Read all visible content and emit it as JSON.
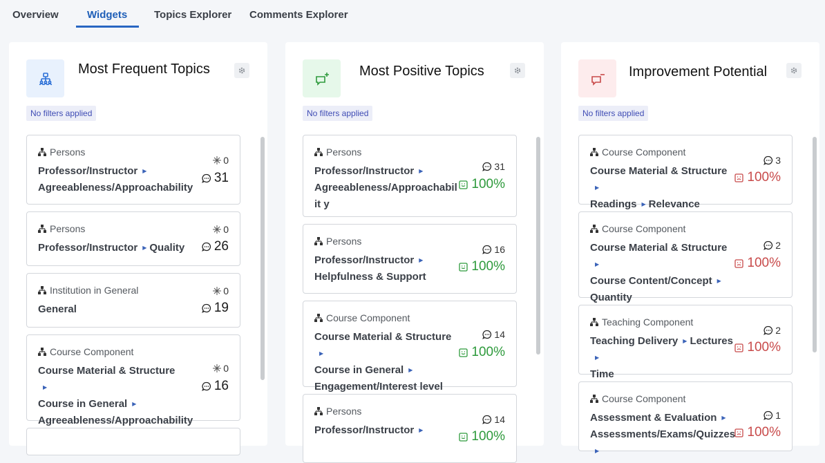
{
  "tabs": [
    "Overview",
    "Widgets",
    "Topics Explorer",
    "Comments Explorer"
  ],
  "active_tab": "Widgets",
  "widgets": [
    {
      "title": "Most Frequent Topics",
      "icon": "topics-group-icon",
      "filter_badge": "No filters applied",
      "cards": [
        {
          "category": "Persons",
          "path": [
            "Professor/Instructor",
            "Agreeableness/Approachability"
          ],
          "small": "0",
          "big": "31"
        },
        {
          "category": "Persons",
          "path": [
            "Professor/Instructor",
            "Quality"
          ],
          "small": "0",
          "big": "26"
        },
        {
          "category": "Institution in General",
          "path": [
            "General"
          ],
          "small": "0",
          "big": "19"
        },
        {
          "category": "Course Component",
          "path": [
            "Course Material & Structure",
            "Course in General",
            "Agreeableness/Approachability"
          ],
          "small": "0",
          "big": "16"
        }
      ]
    },
    {
      "title": "Most Positive Topics",
      "icon": "comment-plus-icon",
      "filter_badge": "No filters applied",
      "cards": [
        {
          "category": "Persons",
          "path": [
            "Professor/Instructor",
            "Agreeableness/Approachabilit y"
          ],
          "small": "31",
          "big": "100%"
        },
        {
          "category": "Persons",
          "path": [
            "Professor/Instructor",
            "Helpfulness & Support"
          ],
          "small": "16",
          "big": "100%"
        },
        {
          "category": "Course Component",
          "path": [
            "Course Material & Structure",
            "Course in General",
            "Engagement/Interest level"
          ],
          "small": "14",
          "big": "100%"
        },
        {
          "category": "Persons",
          "path": [
            "Professor/Instructor",
            ""
          ],
          "small": "14",
          "big": "100%"
        }
      ]
    },
    {
      "title": "Improvement Potential",
      "icon": "comment-minus-icon",
      "filter_badge": "No filters applied",
      "cards": [
        {
          "category": "Course Component",
          "path": [
            "Course Material & Structure",
            "Readings",
            "Relevance"
          ],
          "small": "3",
          "big": "100%"
        },
        {
          "category": "Course Component",
          "path": [
            "Course Material & Structure",
            "Course Content/Concept",
            "Quantity"
          ],
          "small": "2",
          "big": "100%"
        },
        {
          "category": "Teaching Component",
          "path": [
            "Teaching Delivery",
            "Lectures",
            "Time"
          ],
          "small": "2",
          "big": "100%"
        },
        {
          "category": "Course Component",
          "path": [
            "Assessment & Evaluation",
            "Assessments/Exams/Quizzes"
          ],
          "small": "1",
          "big": "100%"
        }
      ]
    }
  ],
  "colors": {
    "accent": "#2866c2",
    "positive": "#2e9a3c",
    "negative": "#c84a4a",
    "topics_bg": "#e8f1fd",
    "positive_bg": "#e6f8ea",
    "negative_bg": "#fdeced"
  }
}
